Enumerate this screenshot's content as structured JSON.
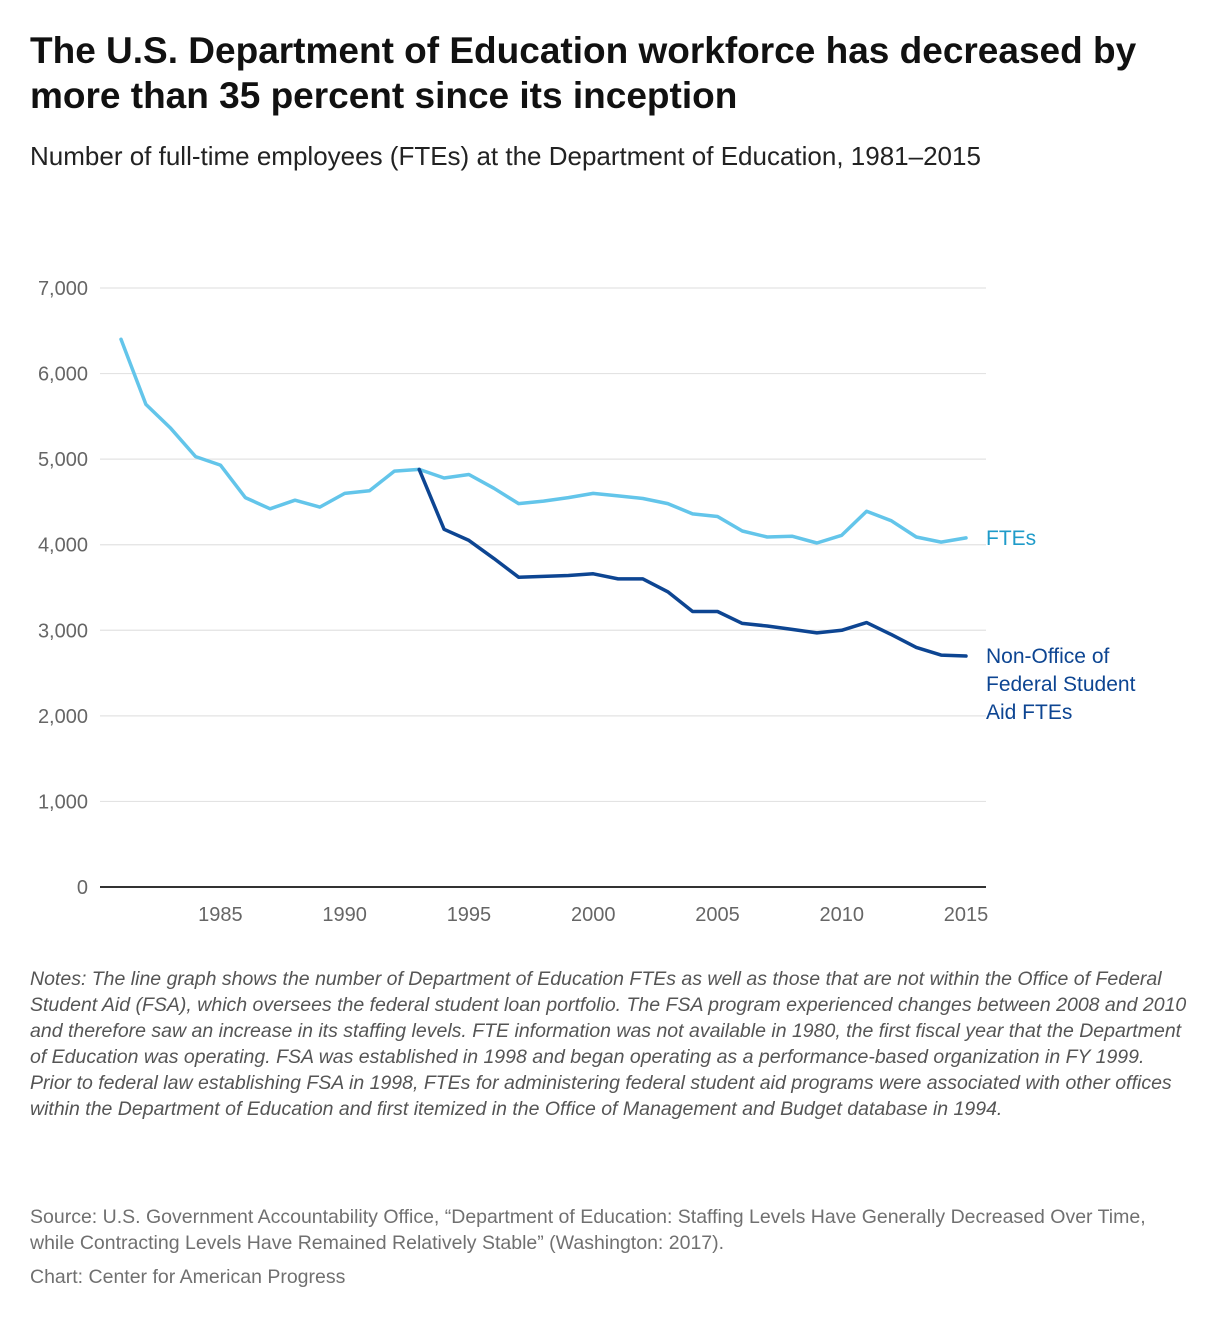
{
  "title": "The U.S. Department of Education workforce has decreased by more than 35 percent since its inception",
  "subtitle": "Number of full-time employees (FTEs) at the Department of Education, 1981–2015",
  "notes": "Notes: The line graph shows the number of Department of Education FTEs as well as those that are not within the Office of Federal Student Aid (FSA), which oversees the federal student loan portfolio. The FSA program experienced changes between 2008 and 2010 and therefore saw an increase in its staffing levels. FTE information was not available in 1980, the first fiscal year that the Department of Education was operating. FSA was established in 1998 and began operating as a performance-based organization in FY 1999. Prior to federal law establishing FSA in 1998, FTEs for administering federal student aid programs were associated with other offices within the Department of Education and first itemized in the Office of Management and Budget database in 1994.",
  "source": "Source: U.S. Government Accountability Office, “Department of Education: Staffing Levels Have Generally Decreased Over Time, while Contracting Levels Have Remained Relatively Stable” (Washington: 2017).",
  "credit": "Chart: Center for American Progress",
  "chart_data": {
    "type": "line",
    "title": "The U.S. Department of Education workforce has decreased by more than 35 percent since its inception",
    "xlabel": "",
    "ylabel": "",
    "xlim": [
      1981,
      2015
    ],
    "ylim": [
      0,
      7000
    ],
    "yticks": [
      0,
      1000,
      2000,
      3000,
      4000,
      5000,
      6000,
      7000
    ],
    "ytick_labels": [
      "0",
      "1,000",
      "2,000",
      "3,000",
      "4,000",
      "5,000",
      "6,000",
      "7,000"
    ],
    "xticks": [
      1985,
      1990,
      1995,
      2000,
      2005,
      2010,
      2015
    ],
    "xtick_labels": [
      "1985",
      "1990",
      "1995",
      "2000",
      "2005",
      "2010",
      "2015"
    ],
    "grid": true,
    "series": [
      {
        "name": "FTEs",
        "label_lines": [
          "FTEs"
        ],
        "color": "#63c5ea",
        "x": [
          1981,
          1982,
          1983,
          1984,
          1985,
          1986,
          1987,
          1988,
          1989,
          1990,
          1991,
          1992,
          1993,
          1994,
          1995,
          1996,
          1997,
          1998,
          1999,
          2000,
          2001,
          2002,
          2003,
          2004,
          2005,
          2006,
          2007,
          2008,
          2009,
          2010,
          2011,
          2012,
          2013,
          2014,
          2015
        ],
        "values": [
          6400,
          5640,
          5360,
          5030,
          4930,
          4550,
          4420,
          4520,
          4440,
          4600,
          4630,
          4860,
          4880,
          4780,
          4820,
          4660,
          4480,
          4510,
          4550,
          4600,
          4570,
          4540,
          4480,
          4360,
          4330,
          4160,
          4090,
          4100,
          4020,
          4110,
          4390,
          4280,
          4090,
          4030,
          4080
        ]
      },
      {
        "name": "Non-Office of Federal Student Aid FTEs",
        "label_lines": [
          "Non-Office of",
          "Federal Student",
          "Aid FTEs"
        ],
        "color": "#0d4592",
        "x": [
          1993,
          1994,
          1995,
          1996,
          1997,
          1998,
          1999,
          2000,
          2001,
          2002,
          2003,
          2004,
          2005,
          2006,
          2007,
          2008,
          2009,
          2010,
          2011,
          2012,
          2013,
          2014,
          2015
        ],
        "values": [
          4880,
          4180,
          4050,
          3840,
          3620,
          3630,
          3640,
          3660,
          3600,
          3600,
          3450,
          3220,
          3220,
          3080,
          3050,
          3010,
          2970,
          3000,
          3090,
          2950,
          2800,
          2710,
          2700
        ]
      }
    ]
  }
}
